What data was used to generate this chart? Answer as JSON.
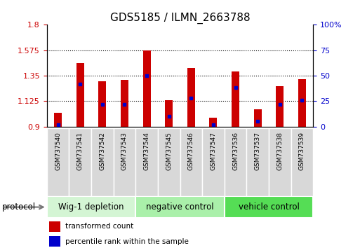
{
  "title": "GDS5185 / ILMN_2663788",
  "samples": [
    "GSM737540",
    "GSM737541",
    "GSM737542",
    "GSM737543",
    "GSM737544",
    "GSM737545",
    "GSM737546",
    "GSM737547",
    "GSM737536",
    "GSM737537",
    "GSM737538",
    "GSM737539"
  ],
  "transformed_count": [
    1.02,
    1.46,
    1.3,
    1.31,
    1.57,
    1.13,
    1.42,
    0.975,
    1.385,
    1.05,
    1.255,
    1.32
  ],
  "percentile_rank": [
    2,
    42,
    22,
    22,
    50,
    10,
    28,
    2,
    38,
    5,
    22,
    26
  ],
  "bar_color": "#cc0000",
  "marker_color": "#0000cc",
  "ylim_left": [
    0.9,
    1.8
  ],
  "ylim_right": [
    0,
    100
  ],
  "yticks_left": [
    0.9,
    1.125,
    1.35,
    1.575,
    1.8
  ],
  "yticks_right": [
    0,
    25,
    50,
    75,
    100
  ],
  "ytick_labels_left": [
    "0.9",
    "1.125",
    "1.35",
    "1.575",
    "1.8"
  ],
  "ytick_labels_right": [
    "0",
    "25",
    "50",
    "75",
    "100%"
  ],
  "groups": [
    {
      "label": "Wig-1 depletion",
      "start": 0,
      "end": 4,
      "color": "#d4f5d4"
    },
    {
      "label": "negative control",
      "start": 4,
      "end": 8,
      "color": "#aaf0aa"
    },
    {
      "label": "vehicle control",
      "start": 8,
      "end": 12,
      "color": "#55dd55"
    }
  ],
  "protocol_label": "protocol",
  "legend_items": [
    {
      "label": "transformed count",
      "color": "#cc0000"
    },
    {
      "label": "percentile rank within the sample",
      "color": "#0000cc"
    }
  ],
  "bar_width": 0.35,
  "base_value": 0.9,
  "title_fontsize": 11,
  "tick_fontsize": 8,
  "group_label_fontsize": 8.5
}
